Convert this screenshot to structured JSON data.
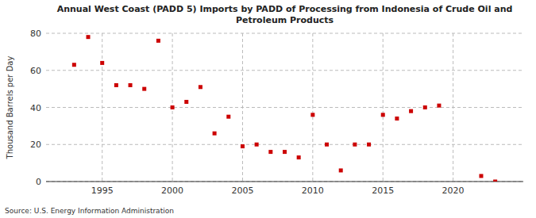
{
  "chart_data": {
    "type": "scatter",
    "title": "Annual West Coast (PADD 5) Imports by PADD of Processing from Indonesia of Crude Oil and\nPetroleum Products",
    "ylabel": "Thousand Barrels per Day",
    "source": "Source: U.S. Energy Information Administration",
    "color": "#cc0000",
    "marker": "square",
    "grid": true,
    "x": [
      1993,
      1994,
      1995,
      1996,
      1997,
      1998,
      1999,
      2000,
      2001,
      2002,
      2003,
      2004,
      2005,
      2006,
      2007,
      2008,
      2009,
      2010,
      2011,
      2012,
      2013,
      2014,
      2015,
      2016,
      2017,
      2018,
      2019,
      2022,
      2023
    ],
    "values": [
      63,
      78,
      64,
      52,
      52,
      50,
      76,
      40,
      43,
      51,
      26,
      35,
      19,
      20,
      16,
      16,
      13,
      36,
      20,
      6,
      20,
      20,
      36,
      34,
      38,
      40,
      41,
      3,
      0
    ],
    "xlim": [
      1991,
      2025
    ],
    "xticks": [
      1995,
      2000,
      2005,
      2010,
      2015,
      2020
    ],
    "ylim": [
      0,
      80
    ],
    "yticks": [
      0,
      20,
      40,
      60,
      80
    ]
  }
}
